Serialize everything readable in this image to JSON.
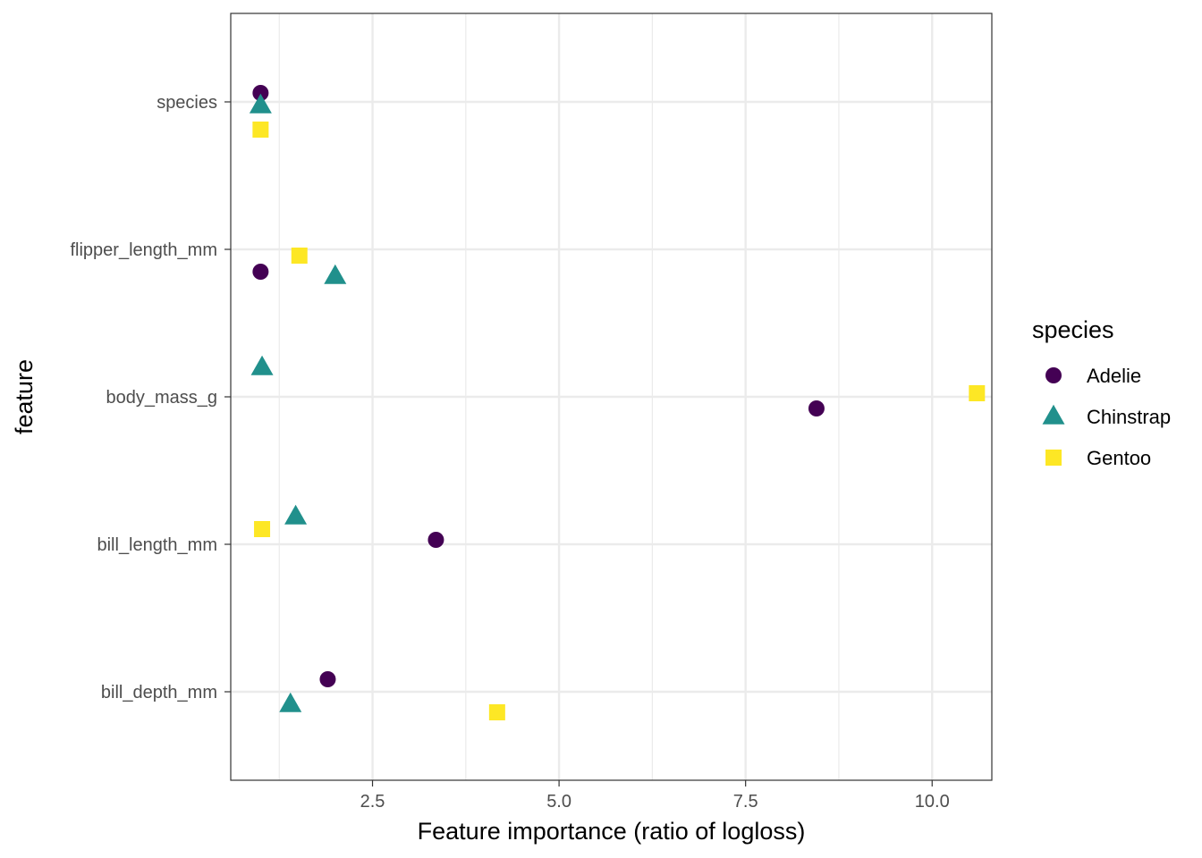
{
  "chart_data": {
    "type": "scatter",
    "xlabel": "Feature importance (ratio of logloss)",
    "ylabel": "feature",
    "xlim": [
      0.6,
      10.8
    ],
    "x_ticks": [
      2.5,
      5.0,
      7.5,
      10.0
    ],
    "x_tick_labels": [
      "2.5",
      "5.0",
      "7.5",
      "10.0"
    ],
    "categories": [
      "species",
      "flipper_length_mm",
      "body_mass_g",
      "bill_length_mm",
      "bill_depth_mm"
    ],
    "grid": true,
    "legend": {
      "title": "species",
      "placement": "right"
    },
    "series": [
      {
        "name": "Adelie",
        "color": "#440154",
        "shape": "circle",
        "points": [
          {
            "category": "species",
            "x": 1.0
          },
          {
            "category": "flipper_length_mm",
            "x": 1.0
          },
          {
            "category": "body_mass_g",
            "x": 8.45
          },
          {
            "category": "bill_length_mm",
            "x": 3.35
          },
          {
            "category": "bill_depth_mm",
            "x": 1.9
          }
        ]
      },
      {
        "name": "Chinstrap",
        "color": "#21908C",
        "shape": "triangle",
        "points": [
          {
            "category": "species",
            "x": 1.0
          },
          {
            "category": "flipper_length_mm",
            "x": 2.0
          },
          {
            "category": "body_mass_g",
            "x": 1.02
          },
          {
            "category": "bill_length_mm",
            "x": 1.47
          },
          {
            "category": "bill_depth_mm",
            "x": 1.4
          }
        ]
      },
      {
        "name": "Gentoo",
        "color": "#FDE725",
        "shape": "square",
        "points": [
          {
            "category": "species",
            "x": 1.0
          },
          {
            "category": "flipper_length_mm",
            "x": 1.52
          },
          {
            "category": "body_mass_g",
            "x": 10.6
          },
          {
            "category": "bill_length_mm",
            "x": 1.02
          },
          {
            "category": "bill_depth_mm",
            "x": 4.17
          }
        ]
      }
    ]
  }
}
